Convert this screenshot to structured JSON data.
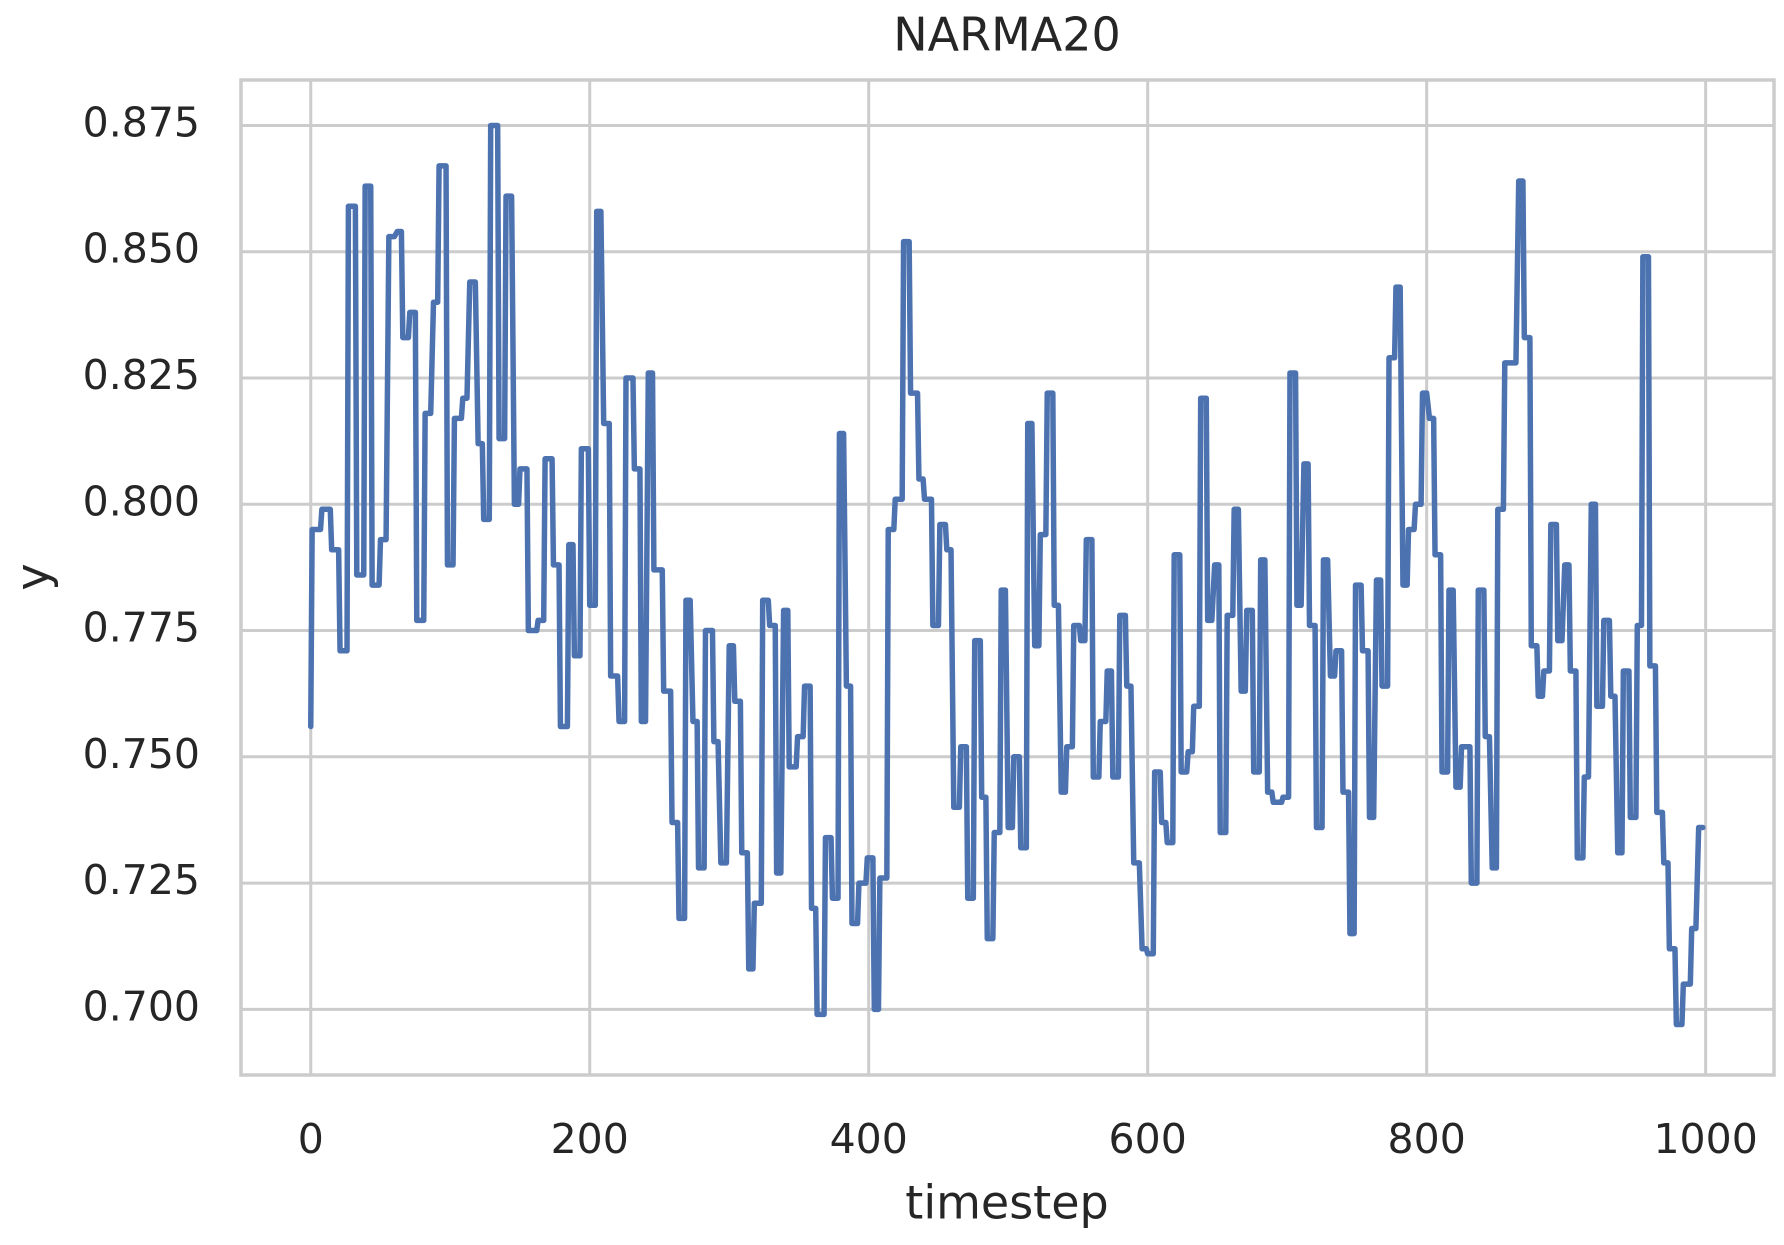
{
  "chart_data": {
    "type": "line",
    "title": "NARMA20",
    "x_label": "timestep",
    "y_label": "y",
    "color": "#4c72b0",
    "grid": true,
    "xlim": [
      -50,
      1049
    ],
    "ylim": [
      0.687,
      0.884
    ],
    "xticks": [
      0,
      200,
      400,
      600,
      800,
      1000
    ],
    "yticks": [
      {
        "value": 0.7,
        "label": "0.700"
      },
      0.725,
      {
        "value": 0.75,
        "label": "0.750"
      },
      0.775,
      {
        "value": 0.8,
        "label": "0.800"
      },
      0.825,
      {
        "value": 0.85,
        "label": "0.850"
      },
      0.875
    ],
    "x": [
      0,
      1,
      7,
      8,
      14,
      15,
      20,
      21,
      26,
      27,
      32,
      33,
      38,
      39,
      43,
      44,
      49,
      50,
      54,
      56,
      60,
      62,
      65,
      66,
      70,
      71,
      75,
      76,
      81,
      82,
      86,
      88,
      91,
      92,
      97,
      98,
      102,
      103,
      108,
      109,
      112,
      114,
      118,
      120,
      123,
      124,
      128,
      129,
      134,
      135,
      139,
      140,
      144,
      146,
      149,
      150,
      155,
      156,
      162,
      163,
      167,
      168,
      173,
      174,
      178,
      179,
      184,
      185,
      188,
      189,
      193,
      194,
      199,
      200,
      204,
      205,
      208,
      210,
      214,
      215,
      220,
      221,
      225,
      226,
      231,
      232,
      236,
      237,
      240,
      242,
      245,
      246,
      252,
      253,
      258,
      259,
      263,
      264,
      268,
      269,
      272,
      274,
      277,
      278,
      282,
      283,
      288,
      289,
      292,
      294,
      298,
      300,
      303,
      304,
      308,
      309,
      313,
      314,
      317,
      318,
      323,
      324,
      328,
      329,
      333,
      334,
      337,
      339,
      342,
      343,
      348,
      349,
      353,
      354,
      358,
      359,
      362,
      363,
      368,
      369,
      373,
      374,
      378,
      379,
      382,
      384,
      387,
      388,
      392,
      393,
      398,
      399,
      403,
      404,
      407,
      408,
      413,
      414,
      418,
      419,
      424,
      425,
      429,
      430,
      435,
      436,
      439,
      440,
      445,
      446,
      450,
      451,
      455,
      456,
      459,
      461,
      465,
      466,
      470,
      471,
      475,
      476,
      480,
      481,
      484,
      485,
      489,
      490,
      494,
      495,
      498,
      500,
      503,
      504,
      508,
      509,
      513,
      514,
      517,
      519,
      522,
      523,
      527,
      528,
      532,
      533,
      536,
      538,
      541,
      542,
      546,
      547,
      551,
      552,
      555,
      556,
      560,
      561,
      565,
      566,
      570,
      571,
      574,
      575,
      579,
      580,
      584,
      585,
      588,
      590,
      594,
      596,
      599,
      600,
      604,
      605,
      609,
      610,
      613,
      614,
      618,
      619,
      623,
      624,
      628,
      629,
      632,
      633,
      637,
      638,
      642,
      643,
      646,
      648,
      651,
      652,
      656,
      657,
      661,
      662,
      665,
      667,
      670,
      671,
      675,
      676,
      680,
      681,
      684,
      686,
      689,
      690,
      696,
      697,
      701,
      702,
      706,
      707,
      710,
      712,
      715,
      716,
      720,
      721,
      725,
      726,
      729,
      731,
      734,
      735,
      739,
      740,
      744,
      745,
      748,
      749,
      753,
      754,
      758,
      759,
      762,
      764,
      767,
      768,
      772,
      773,
      777,
      778,
      781,
      783,
      786,
      787,
      791,
      792,
      796,
      797,
      800,
      802,
      805,
      806,
      810,
      811,
      815,
      816,
      819,
      821,
      824,
      825,
      831,
      832,
      836,
      837,
      841,
      842,
      845,
      847,
      850,
      851,
      855,
      856,
      864,
      866,
      869,
      870,
      874,
      875,
      879,
      880,
      883,
      884,
      888,
      889,
      893,
      894,
      897,
      899,
      902,
      903,
      907,
      908,
      912,
      913,
      916,
      918,
      921,
      922,
      926,
      927,
      931,
      932,
      935,
      937,
      940,
      941,
      945,
      946,
      950,
      951,
      954,
      955,
      959,
      960,
      964,
      965,
      969,
      970,
      973,
      974,
      978,
      979,
      983,
      984,
      989,
      990,
      993,
      995,
      998
    ],
    "values": [
      0.756,
      0.795,
      0.795,
      0.799,
      0.799,
      0.791,
      0.791,
      0.771,
      0.771,
      0.859,
      0.859,
      0.786,
      0.786,
      0.863,
      0.863,
      0.784,
      0.784,
      0.793,
      0.793,
      0.853,
      0.853,
      0.854,
      0.854,
      0.833,
      0.833,
      0.838,
      0.838,
      0.777,
      0.777,
      0.818,
      0.818,
      0.84,
      0.84,
      0.867,
      0.867,
      0.788,
      0.788,
      0.817,
      0.817,
      0.821,
      0.821,
      0.844,
      0.844,
      0.812,
      0.812,
      0.797,
      0.797,
      0.875,
      0.875,
      0.813,
      0.813,
      0.861,
      0.861,
      0.8,
      0.8,
      0.807,
      0.807,
      0.775,
      0.775,
      0.777,
      0.777,
      0.809,
      0.809,
      0.788,
      0.788,
      0.756,
      0.756,
      0.792,
      0.792,
      0.77,
      0.77,
      0.811,
      0.811,
      0.78,
      0.78,
      0.858,
      0.858,
      0.816,
      0.816,
      0.766,
      0.766,
      0.757,
      0.757,
      0.825,
      0.825,
      0.807,
      0.807,
      0.757,
      0.757,
      0.826,
      0.826,
      0.787,
      0.787,
      0.763,
      0.763,
      0.737,
      0.737,
      0.718,
      0.718,
      0.781,
      0.781,
      0.757,
      0.757,
      0.728,
      0.728,
      0.775,
      0.775,
      0.753,
      0.753,
      0.729,
      0.729,
      0.772,
      0.772,
      0.761,
      0.761,
      0.731,
      0.731,
      0.708,
      0.708,
      0.721,
      0.721,
      0.781,
      0.781,
      0.776,
      0.776,
      0.727,
      0.727,
      0.779,
      0.779,
      0.748,
      0.748,
      0.754,
      0.754,
      0.764,
      0.764,
      0.72,
      0.72,
      0.699,
      0.699,
      0.734,
      0.734,
      0.722,
      0.722,
      0.814,
      0.814,
      0.764,
      0.764,
      0.717,
      0.717,
      0.725,
      0.725,
      0.73,
      0.73,
      0.7,
      0.7,
      0.726,
      0.726,
      0.795,
      0.795,
      0.801,
      0.801,
      0.852,
      0.852,
      0.822,
      0.822,
      0.805,
      0.805,
      0.801,
      0.801,
      0.776,
      0.776,
      0.796,
      0.796,
      0.791,
      0.791,
      0.74,
      0.74,
      0.752,
      0.752,
      0.722,
      0.722,
      0.773,
      0.773,
      0.742,
      0.742,
      0.714,
      0.714,
      0.735,
      0.735,
      0.783,
      0.783,
      0.736,
      0.736,
      0.75,
      0.75,
      0.732,
      0.732,
      0.816,
      0.816,
      0.772,
      0.772,
      0.794,
      0.794,
      0.822,
      0.822,
      0.78,
      0.78,
      0.743,
      0.743,
      0.752,
      0.752,
      0.776,
      0.776,
      0.773,
      0.773,
      0.793,
      0.793,
      0.746,
      0.746,
      0.757,
      0.757,
      0.767,
      0.767,
      0.746,
      0.746,
      0.778,
      0.778,
      0.764,
      0.764,
      0.729,
      0.729,
      0.712,
      0.712,
      0.711,
      0.711,
      0.747,
      0.747,
      0.737,
      0.737,
      0.733,
      0.733,
      0.79,
      0.79,
      0.747,
      0.747,
      0.751,
      0.751,
      0.76,
      0.76,
      0.821,
      0.821,
      0.777,
      0.777,
      0.788,
      0.788,
      0.735,
      0.735,
      0.778,
      0.778,
      0.799,
      0.799,
      0.763,
      0.763,
      0.779,
      0.779,
      0.747,
      0.747,
      0.789,
      0.789,
      0.743,
      0.743,
      0.741,
      0.741,
      0.742,
      0.742,
      0.826,
      0.826,
      0.78,
      0.78,
      0.808,
      0.808,
      0.776,
      0.776,
      0.736,
      0.736,
      0.789,
      0.789,
      0.766,
      0.766,
      0.771,
      0.771,
      0.743,
      0.743,
      0.715,
      0.715,
      0.784,
      0.784,
      0.771,
      0.771,
      0.738,
      0.738,
      0.785,
      0.785,
      0.764,
      0.764,
      0.829,
      0.829,
      0.843,
      0.843,
      0.784,
      0.784,
      0.795,
      0.795,
      0.8,
      0.8,
      0.822,
      0.822,
      0.817,
      0.817,
      0.79,
      0.79,
      0.747,
      0.747,
      0.783,
      0.783,
      0.744,
      0.744,
      0.752,
      0.752,
      0.725,
      0.725,
      0.783,
      0.783,
      0.754,
      0.754,
      0.728,
      0.728,
      0.799,
      0.799,
      0.828,
      0.828,
      0.864,
      0.864,
      0.833,
      0.833,
      0.772,
      0.772,
      0.762,
      0.762,
      0.767,
      0.767,
      0.796,
      0.796,
      0.773,
      0.773,
      0.788,
      0.788,
      0.767,
      0.767,
      0.73,
      0.73,
      0.746,
      0.746,
      0.8,
      0.8,
      0.76,
      0.76,
      0.777,
      0.777,
      0.762,
      0.762,
      0.731,
      0.731,
      0.767,
      0.767,
      0.738,
      0.738,
      0.776,
      0.776,
      0.849,
      0.849,
      0.768,
      0.768,
      0.739,
      0.739,
      0.729,
      0.729,
      0.712,
      0.712,
      0.697,
      0.697,
      0.705,
      0.705,
      0.716,
      0.716,
      0.736,
      0.736
    ]
  }
}
